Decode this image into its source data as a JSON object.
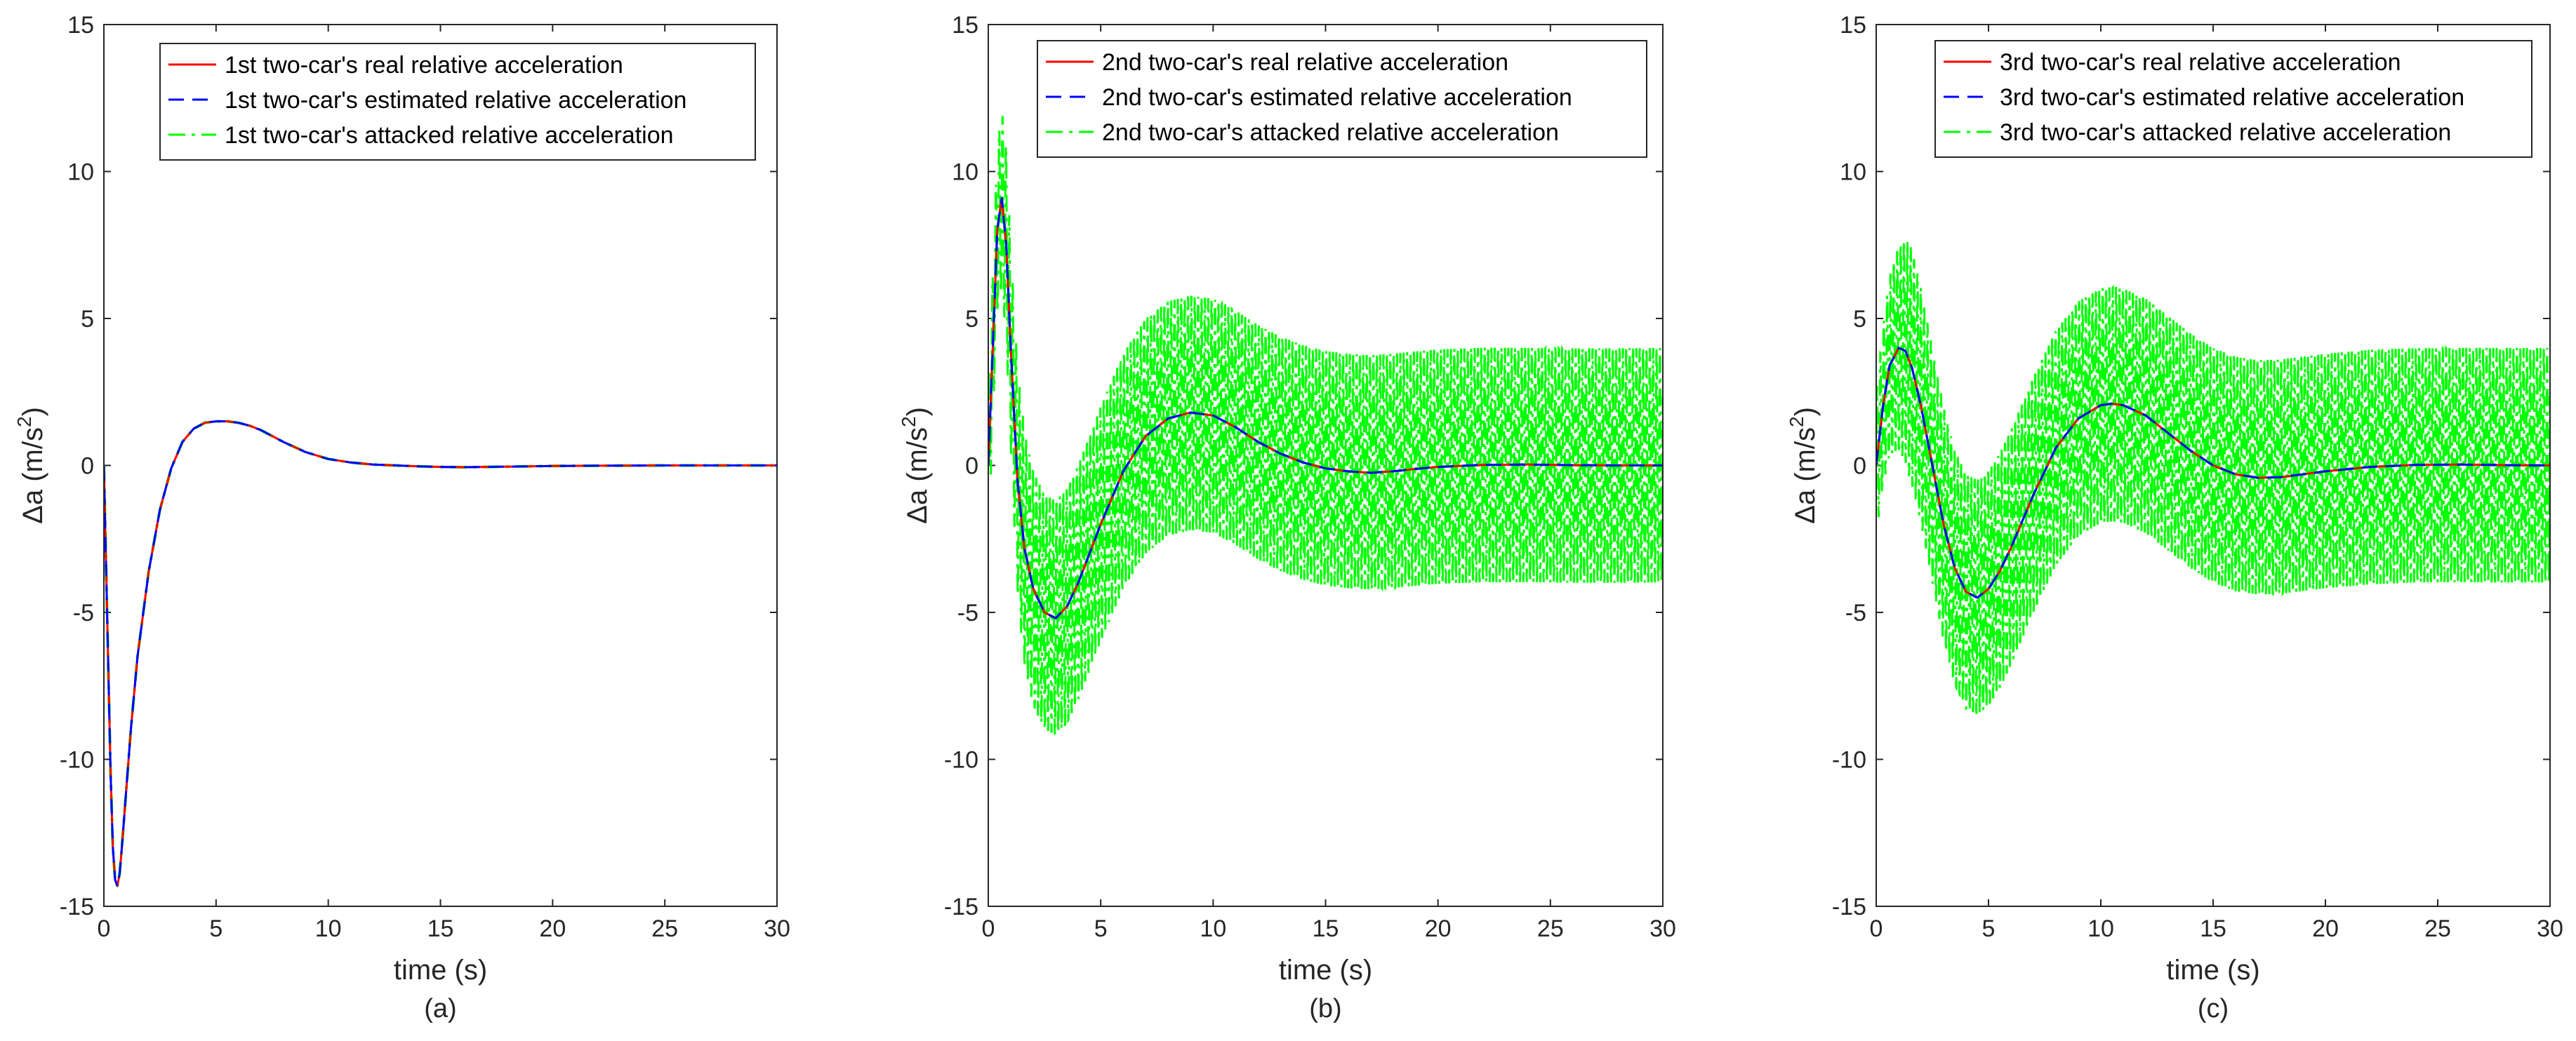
{
  "figure": {
    "title": "",
    "panel_labels": [
      "(a)",
      "(b)",
      "(c)"
    ]
  },
  "chart_data": [
    {
      "type": "line",
      "panel_label": "(a)",
      "xlabel": "time (s)",
      "ylabel_main": "Δa  (m/s",
      "ylabel_sup": "2",
      "ylabel_close": ")",
      "xlim": [
        0,
        30
      ],
      "ylim": [
        -15,
        15
      ],
      "xticks": [
        0,
        5,
        10,
        15,
        20,
        25,
        30
      ],
      "yticks": [
        -15,
        -10,
        -5,
        0,
        5,
        10,
        15
      ],
      "legend_position": "top-right",
      "series": [
        {
          "name": "1st two-car's real relative acceleration",
          "color": "#ff0000",
          "style": "solid",
          "x": [
            0,
            0.1,
            0.2,
            0.3,
            0.4,
            0.5,
            0.6,
            0.7,
            0.8,
            1.0,
            1.2,
            1.5,
            2,
            2.5,
            3,
            3.5,
            4,
            4.5,
            5,
            5.5,
            6,
            6.5,
            7,
            7.5,
            8,
            9,
            10,
            11,
            12,
            13,
            14,
            15,
            16,
            17,
            18,
            20,
            22,
            25,
            30
          ],
          "y": [
            0,
            -3.5,
            -7,
            -10.5,
            -13,
            -14.1,
            -14.3,
            -13.9,
            -13,
            -11,
            -9,
            -6.5,
            -3.6,
            -1.5,
            -0.1,
            0.8,
            1.25,
            1.45,
            1.5,
            1.5,
            1.45,
            1.35,
            1.2,
            1.0,
            0.8,
            0.45,
            0.22,
            0.1,
            0.03,
            0,
            -0.03,
            -0.05,
            -0.06,
            -0.05,
            -0.04,
            -0.02,
            -0.01,
            0,
            0
          ]
        },
        {
          "name": "1st two-car's estimated relative acceleration",
          "color": "#0000ff",
          "style": "dashed",
          "x": [
            0,
            0.1,
            0.2,
            0.3,
            0.4,
            0.5,
            0.6,
            0.7,
            0.8,
            1.0,
            1.2,
            1.5,
            2,
            2.5,
            3,
            3.5,
            4,
            4.5,
            5,
            5.5,
            6,
            6.5,
            7,
            7.5,
            8,
            9,
            10,
            11,
            12,
            13,
            14,
            15,
            16,
            17,
            18,
            20,
            22,
            25,
            30
          ],
          "y": [
            0,
            -3.5,
            -7,
            -10.5,
            -13,
            -14.1,
            -14.3,
            -13.9,
            -13,
            -11,
            -9,
            -6.5,
            -3.6,
            -1.5,
            -0.1,
            0.8,
            1.25,
            1.45,
            1.5,
            1.5,
            1.45,
            1.35,
            1.2,
            1.0,
            0.8,
            0.45,
            0.22,
            0.1,
            0.03,
            0,
            -0.03,
            -0.05,
            -0.06,
            -0.05,
            -0.04,
            -0.02,
            -0.01,
            0,
            0
          ]
        },
        {
          "name": "1st two-car's attacked relative acceleration",
          "color": "#00ff00",
          "style": "dashdot",
          "x": [
            0,
            0.1,
            0.2,
            0.3,
            0.4,
            0.5,
            0.6,
            0.7,
            0.8,
            1.0,
            1.2,
            1.5,
            2,
            2.5,
            3,
            3.5,
            4,
            4.5,
            5,
            5.5,
            6,
            6.5,
            7,
            7.5,
            8,
            9,
            10,
            11,
            12,
            13,
            14,
            15,
            16,
            17,
            18,
            20,
            22,
            25,
            30
          ],
          "y": [
            0,
            -3.5,
            -7,
            -10.5,
            -13,
            -14.1,
            -14.3,
            -13.9,
            -13,
            -11,
            -9,
            -6.5,
            -3.6,
            -1.5,
            -0.1,
            0.8,
            1.25,
            1.45,
            1.5,
            1.5,
            1.45,
            1.35,
            1.2,
            1.0,
            0.8,
            0.45,
            0.22,
            0.1,
            0.03,
            0,
            -0.03,
            -0.05,
            -0.06,
            -0.05,
            -0.04,
            -0.02,
            -0.01,
            0,
            0
          ]
        }
      ]
    },
    {
      "type": "line",
      "panel_label": "(b)",
      "xlabel": "time (s)",
      "ylabel_main": "Δa  (m/s",
      "ylabel_sup": "2",
      "ylabel_close": ")",
      "xlim": [
        0,
        30
      ],
      "ylim": [
        -15,
        15
      ],
      "xticks": [
        0,
        5,
        10,
        15,
        20,
        25,
        30
      ],
      "yticks": [
        -15,
        -10,
        -5,
        0,
        5,
        10,
        15
      ],
      "legend_position": "top-right",
      "attack_band": {
        "series_index": 2,
        "amplitude": 4,
        "cycles_per_second": 6.67
      },
      "series": [
        {
          "name": "2nd two-car's real relative acceleration",
          "color": "#ff0000",
          "style": "solid",
          "x": [
            0,
            0.2,
            0.4,
            0.6,
            0.8,
            1.0,
            1.3,
            1.6,
            2,
            2.5,
            3,
            3.5,
            4,
            5,
            6,
            7,
            8,
            9,
            10,
            11,
            12,
            13,
            14,
            15,
            16,
            17,
            18,
            19,
            20,
            22,
            24,
            26,
            28,
            30
          ],
          "y": [
            0,
            4,
            8,
            9.1,
            7.5,
            4,
            -0.5,
            -2.8,
            -4.2,
            -5,
            -5.2,
            -4.8,
            -4,
            -2,
            -0.2,
            1,
            1.6,
            1.8,
            1.7,
            1.3,
            0.8,
            0.4,
            0.1,
            -0.1,
            -0.2,
            -0.25,
            -0.2,
            -0.12,
            -0.05,
            0.02,
            0.03,
            0.01,
            0,
            0
          ]
        },
        {
          "name": "2nd two-car's estimated relative acceleration",
          "color": "#0000ff",
          "style": "dashed",
          "x": [
            0,
            0.2,
            0.4,
            0.6,
            0.8,
            1.0,
            1.3,
            1.6,
            2,
            2.5,
            3,
            3.5,
            4,
            5,
            6,
            7,
            8,
            9,
            10,
            11,
            12,
            13,
            14,
            15,
            16,
            17,
            18,
            19,
            20,
            22,
            24,
            26,
            28,
            30
          ],
          "y": [
            0,
            4,
            8,
            9.1,
            7.5,
            4,
            -0.5,
            -2.8,
            -4.2,
            -5,
            -5.2,
            -4.8,
            -4,
            -2,
            -0.2,
            1,
            1.6,
            1.8,
            1.7,
            1.3,
            0.8,
            0.4,
            0.1,
            -0.1,
            -0.2,
            -0.25,
            -0.2,
            -0.12,
            -0.05,
            0.02,
            0.03,
            0.01,
            0,
            0
          ]
        },
        {
          "name": "2nd two-car's attacked relative acceleration",
          "color": "#00ff00",
          "style": "dashdot",
          "x": [
            0,
            0.2,
            0.4,
            0.6,
            0.8,
            1.0,
            1.3,
            1.6,
            2,
            2.5,
            3,
            3.5,
            4,
            5,
            6,
            7,
            8,
            9,
            10,
            11,
            12,
            13,
            14,
            15,
            16,
            17,
            18,
            19,
            20,
            22,
            24,
            26,
            28,
            30
          ],
          "y": [
            0,
            4,
            8,
            9.1,
            7.5,
            4,
            -0.5,
            -2.8,
            -4.2,
            -5,
            -5.2,
            -4.8,
            -4,
            -2,
            -0.2,
            1,
            1.6,
            1.8,
            1.7,
            1.3,
            0.8,
            0.4,
            0.1,
            -0.1,
            -0.2,
            -0.25,
            -0.2,
            -0.12,
            -0.05,
            0.02,
            0.03,
            0.01,
            0,
            0
          ]
        }
      ]
    },
    {
      "type": "line",
      "panel_label": "(c)",
      "xlabel": "time (s)",
      "ylabel_main": "Δa  (m/s",
      "ylabel_sup": "2",
      "ylabel_close": ")",
      "xlim": [
        0,
        30
      ],
      "ylim": [
        -15,
        15
      ],
      "xticks": [
        0,
        5,
        10,
        15,
        20,
        25,
        30
      ],
      "yticks": [
        -15,
        -10,
        -5,
        0,
        5,
        10,
        15
      ],
      "legend_position": "top-right",
      "attack_band": {
        "series_index": 2,
        "amplitude": 4,
        "cycles_per_second": 6.67
      },
      "series": [
        {
          "name": "3rd two-car's real relative acceleration",
          "color": "#ff0000",
          "style": "solid",
          "x": [
            0,
            0.3,
            0.6,
            1.0,
            1.3,
            1.6,
            2,
            2.5,
            3,
            3.5,
            4,
            4.5,
            5,
            5.5,
            6,
            7,
            8,
            9,
            10,
            10.5,
            11,
            12,
            13,
            14,
            15,
            16,
            17,
            18,
            19,
            20,
            22,
            24,
            26,
            28,
            30
          ],
          "y": [
            0,
            2,
            3.4,
            4,
            3.9,
            3.3,
            2,
            0,
            -2,
            -3.5,
            -4.3,
            -4.5,
            -4.2,
            -3.6,
            -2.8,
            -1,
            0.6,
            1.6,
            2.05,
            2.1,
            2.05,
            1.7,
            1.1,
            0.5,
            0,
            -0.3,
            -0.42,
            -0.4,
            -0.3,
            -0.2,
            -0.05,
            0.02,
            0.03,
            0.01,
            0
          ]
        },
        {
          "name": "3rd two-car's estimated relative acceleration",
          "color": "#0000ff",
          "style": "dashed",
          "x": [
            0,
            0.3,
            0.6,
            1.0,
            1.3,
            1.6,
            2,
            2.5,
            3,
            3.5,
            4,
            4.5,
            5,
            5.5,
            6,
            7,
            8,
            9,
            10,
            10.5,
            11,
            12,
            13,
            14,
            15,
            16,
            17,
            18,
            19,
            20,
            22,
            24,
            26,
            28,
            30
          ],
          "y": [
            0,
            2,
            3.4,
            4,
            3.9,
            3.3,
            2,
            0,
            -2,
            -3.5,
            -4.3,
            -4.5,
            -4.2,
            -3.6,
            -2.8,
            -1,
            0.6,
            1.6,
            2.05,
            2.1,
            2.05,
            1.7,
            1.1,
            0.5,
            0,
            -0.3,
            -0.42,
            -0.4,
            -0.3,
            -0.2,
            -0.05,
            0.02,
            0.03,
            0.01,
            0
          ]
        },
        {
          "name": "3rd two-car's attacked relative acceleration",
          "color": "#00ff00",
          "style": "dashdot",
          "x": [
            0,
            0.3,
            0.6,
            1.0,
            1.3,
            1.6,
            2,
            2.5,
            3,
            3.5,
            4,
            4.5,
            5,
            5.5,
            6,
            7,
            8,
            9,
            10,
            10.5,
            11,
            12,
            13,
            14,
            15,
            16,
            17,
            18,
            19,
            20,
            22,
            24,
            26,
            28,
            30
          ],
          "y": [
            0,
            2,
            3.4,
            4,
            3.9,
            3.3,
            2,
            0,
            -2,
            -3.5,
            -4.3,
            -4.5,
            -4.2,
            -3.6,
            -2.8,
            -1,
            0.6,
            1.6,
            2.05,
            2.1,
            2.05,
            1.7,
            1.1,
            0.5,
            0,
            -0.3,
            -0.42,
            -0.4,
            -0.3,
            -0.2,
            -0.05,
            0.02,
            0.03,
            0.01,
            0
          ]
        }
      ]
    }
  ]
}
